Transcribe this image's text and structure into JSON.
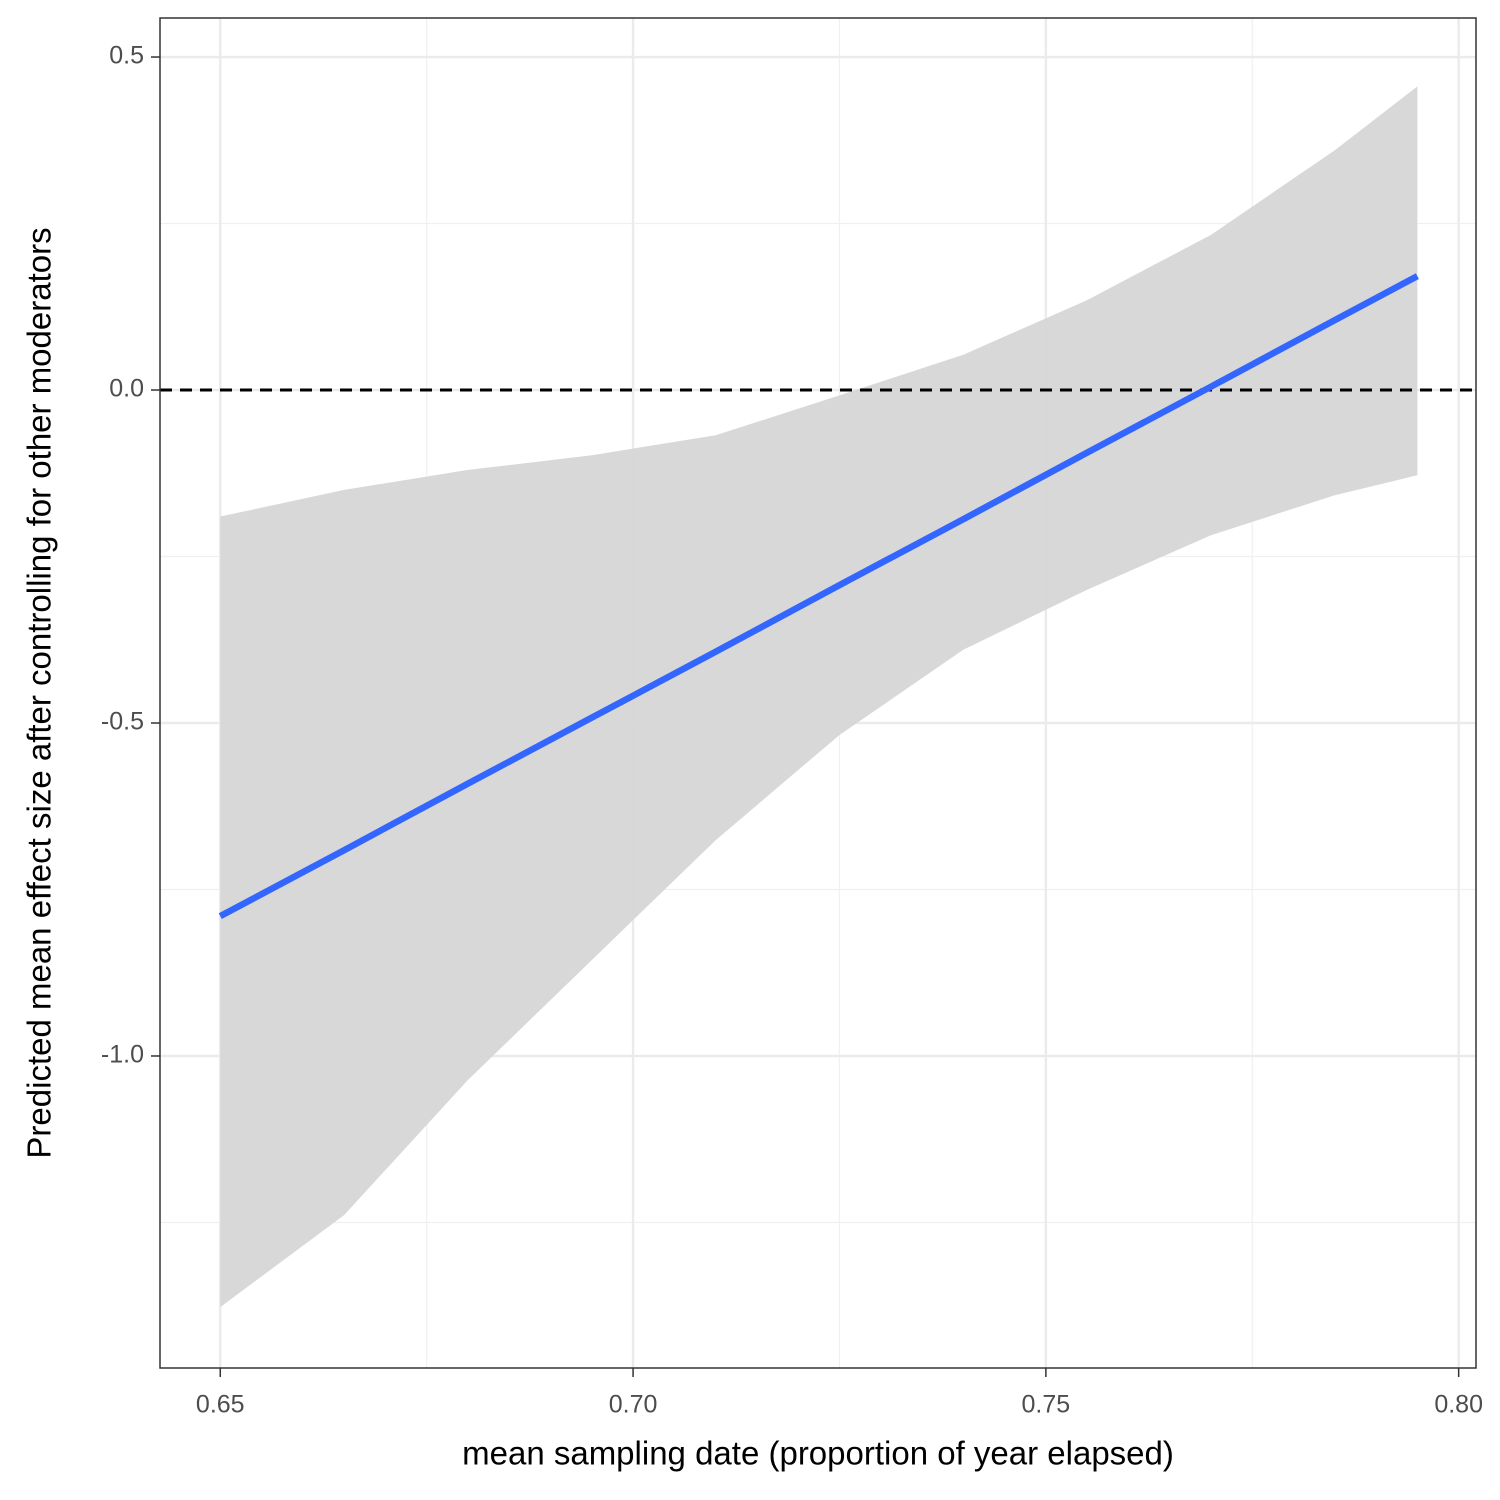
{
  "chart_data": {
    "type": "line",
    "x_label": "mean sampling date (proportion of year elapsed)",
    "y_label": "Predicted mean effect size after controlling for other moderators",
    "x": [
      0.65,
      0.665,
      0.68,
      0.695,
      0.71,
      0.725,
      0.74,
      0.755,
      0.77,
      0.785,
      0.795
    ],
    "fit": [
      -0.79,
      -0.691,
      -0.591,
      -0.492,
      -0.393,
      -0.293,
      -0.194,
      -0.094,
      0.005,
      0.105,
      0.171
    ],
    "lower": [
      -1.377,
      -1.239,
      -1.036,
      -0.856,
      -0.676,
      -0.518,
      -0.39,
      -0.3,
      -0.218,
      -0.158,
      -0.128
    ],
    "upper": [
      -0.19,
      -0.15,
      -0.12,
      -0.098,
      -0.068,
      -0.008,
      0.053,
      0.135,
      0.233,
      0.36,
      0.456
    ],
    "line_color": "#3366ff",
    "band_color": "#d6d6d6",
    "hline": 0,
    "xlim": [
      0.6427,
      0.8021
    ],
    "xticks": [
      0.65,
      {
        "value": 0.7,
        "label": "0.70"
      },
      0.75,
      {
        "value": 0.8,
        "label": "0.80"
      }
    ],
    "ylim": [
      -1.4685,
      0.5586
    ],
    "yticks": [
      0.5,
      {
        "value": 0,
        "label": "0.0"
      },
      -0.5,
      {
        "value": -1,
        "label": "-1.0"
      }
    ],
    "grid": true
  }
}
